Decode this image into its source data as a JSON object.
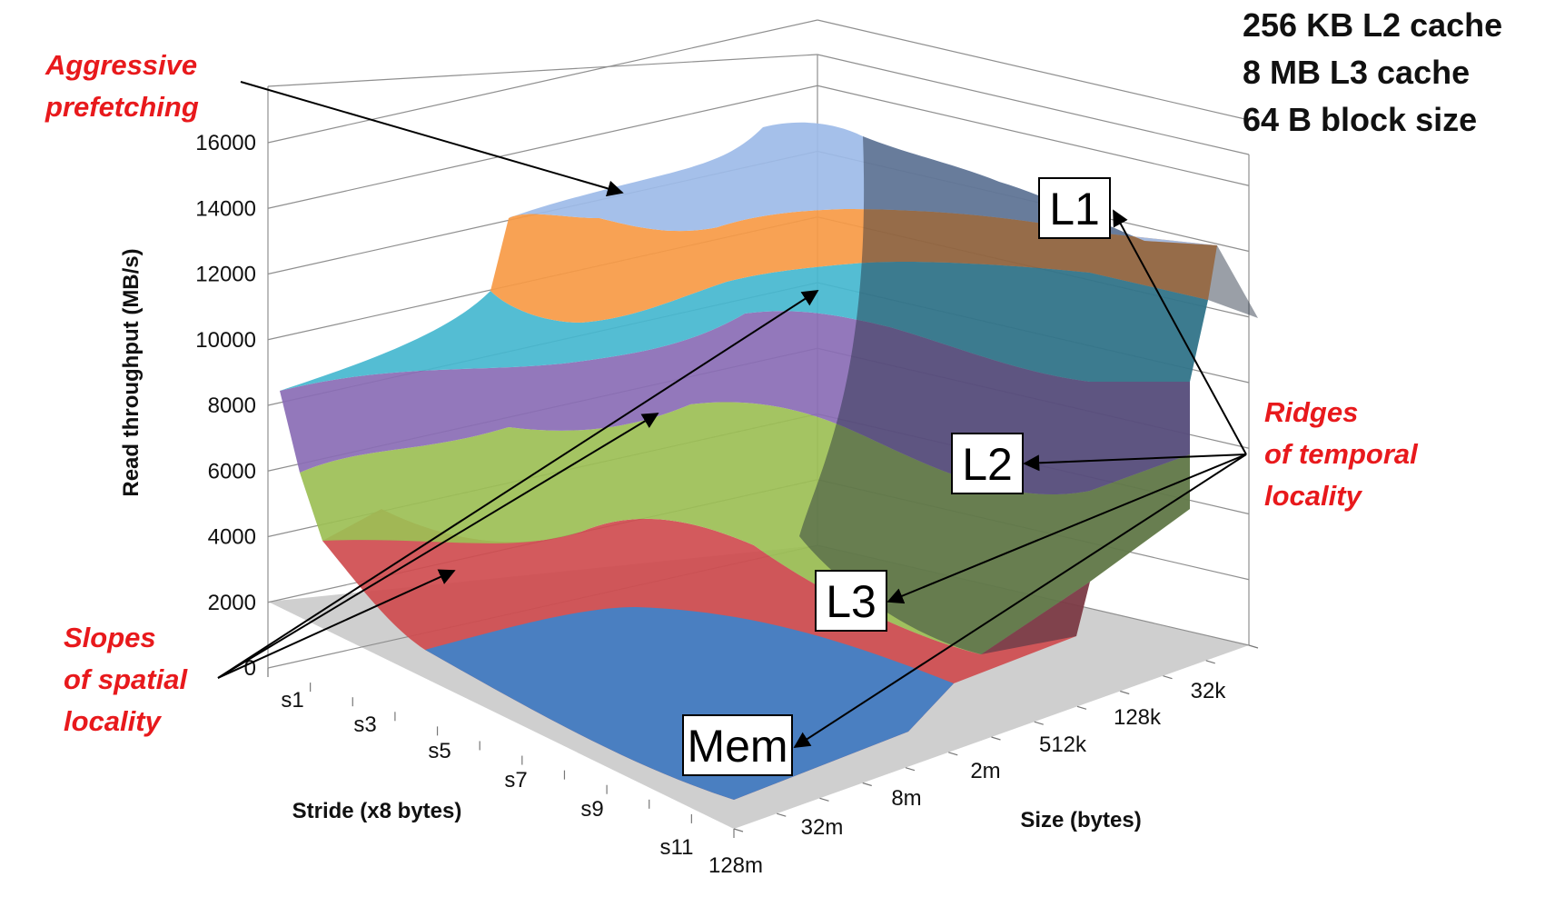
{
  "chart_data": {
    "type": "surface",
    "zlabel": "Read throughput (MB/s)",
    "xlabel": "Stride (x8 bytes)",
    "ylabel": "Size (bytes)",
    "zticks": [
      "0",
      "2000",
      "4000",
      "6000",
      "8000",
      "10000",
      "12000",
      "14000",
      "16000"
    ],
    "zlim": [
      0,
      16000
    ],
    "stride_ticks": [
      "s1",
      "s3",
      "s5",
      "s7",
      "s9",
      "s11"
    ],
    "size_ticks": [
      "32k",
      "128k",
      "512k",
      "2m",
      "8m",
      "32m",
      "128m"
    ],
    "band_colors": [
      "#4a7fc1",
      "#cf4c4f",
      "#9cbf55",
      "#8a6cb5",
      "#45b7cf",
      "#f79a45",
      "#9dbbe8"
    ],
    "info": [
      "256 KB L2 cache",
      "8 MB L3 cache",
      "64 B block size"
    ],
    "annotations": {
      "prefetch": [
        "Aggressive",
        "prefetching"
      ],
      "spatial": [
        "Slopes",
        "of spatial",
        "locality"
      ],
      "temporal": [
        "Ridges",
        "of temporal",
        "locality"
      ],
      "boxes": [
        "L1",
        "L2",
        "L3",
        "Mem"
      ]
    }
  }
}
